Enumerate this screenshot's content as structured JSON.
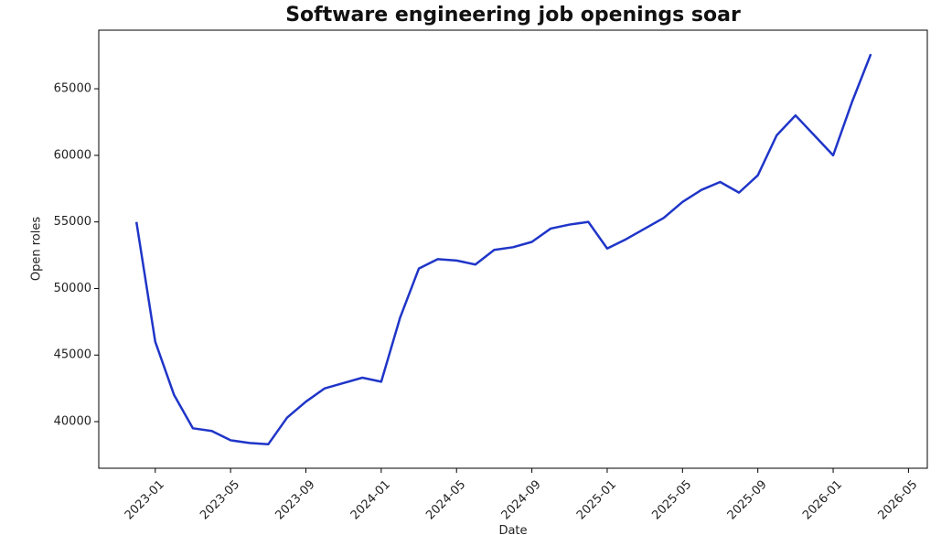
{
  "chart_data": {
    "type": "line",
    "title": "Software engineering job openings soar",
    "x_label": "Date",
    "y_label": "Open roles",
    "x": [
      "2022-12",
      "2023-01",
      "2023-02",
      "2023-03",
      "2023-04",
      "2023-05",
      "2023-06",
      "2023-07",
      "2023-08",
      "2023-09",
      "2023-10",
      "2023-11",
      "2023-12",
      "2024-01",
      "2024-02",
      "2024-03",
      "2024-04",
      "2024-05",
      "2024-06",
      "2024-07",
      "2024-08",
      "2024-09",
      "2024-10",
      "2024-11",
      "2024-12",
      "2025-01",
      "2025-02",
      "2025-03",
      "2025-04",
      "2025-05",
      "2025-06",
      "2025-07",
      "2025-08",
      "2025-09",
      "2025-10",
      "2025-11",
      "2025-12",
      "2026-01",
      "2026-02",
      "2026-03"
    ],
    "series": [
      {
        "name": "Open roles",
        "color": "#1f35c8",
        "values": [
          55000,
          46000,
          42000,
          39500,
          39300,
          38600,
          38400,
          38300,
          40300,
          41500,
          42500,
          42900,
          43300,
          43000,
          47800,
          51500,
          52200,
          52100,
          51800,
          52900,
          53100,
          53500,
          54500,
          54800,
          55000,
          53000,
          53700,
          54500,
          55300,
          56500,
          57400,
          58000,
          57200,
          58500,
          61500,
          63000,
          61500,
          60000,
          64000,
          67600
        ]
      }
    ],
    "xlim": [
      "2022-10",
      "2026-06"
    ],
    "xticks": [
      "2023-01",
      "2023-05",
      "2023-09",
      "2024-01",
      "2024-05",
      "2024-09",
      "2025-01",
      "2025-05",
      "2025-09",
      "2026-01",
      "2026-05"
    ],
    "ylim": [
      36500,
      69400
    ],
    "yticks": [
      40000,
      45000,
      50000,
      55000,
      60000,
      65000
    ],
    "grid": false
  }
}
